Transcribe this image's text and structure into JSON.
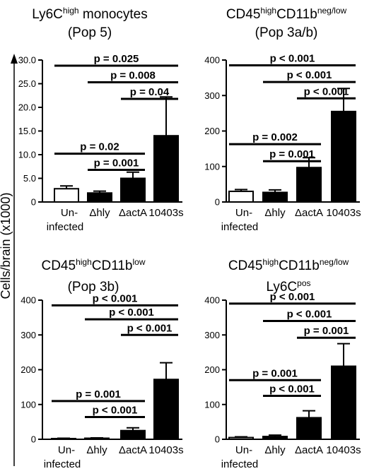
{
  "figure": {
    "ylabel": "Cells/brain (x1000)"
  },
  "chart_data": [
    {
      "type": "bar",
      "title_lines": [
        [
          {
            "t": "Ly6C"
          },
          {
            "t": "high",
            "sup": true
          },
          {
            "t": " monocytes"
          }
        ],
        [
          {
            "t": "(Pop 5)"
          }
        ]
      ],
      "categories": [
        "Un-\ninfected",
        "Δhly",
        "ΔactA",
        "10403s"
      ],
      "values": [
        2.8,
        1.9,
        5.0,
        14.0
      ],
      "errors": [
        0.6,
        0.4,
        1.3,
        8.2
      ],
      "fills": [
        "#ffffff",
        "#000000",
        "#000000",
        "#000000"
      ],
      "ylim": [
        0,
        30
      ],
      "yticks": [
        0,
        5,
        10,
        15,
        20,
        25,
        30
      ],
      "tick_labels": [
        "0",
        "5.0",
        "10.0",
        "15.0",
        "20.0",
        "25.0",
        "30.0"
      ],
      "comparisons": [
        {
          "from": 0,
          "to": 3,
          "label": "p = 0.025",
          "y": 28.8
        },
        {
          "from": 1,
          "to": 3,
          "label": "p = 0.008",
          "y": 25.3
        },
        {
          "from": 2,
          "to": 3,
          "label": "p = 0.04",
          "y": 21.8
        },
        {
          "from": 0,
          "to": 2,
          "label": "p = 0.02",
          "y": 10.2
        },
        {
          "from": 1,
          "to": 2,
          "label": "p = 0.001",
          "y": 6.8
        }
      ]
    },
    {
      "type": "bar",
      "title_lines": [
        [
          {
            "t": "CD45"
          },
          {
            "t": "high",
            "sup": true
          },
          {
            "t": "CD11b"
          },
          {
            "t": "neg/low",
            "sup": true
          }
        ],
        [
          {
            "t": "(Pop 3a/b)"
          }
        ]
      ],
      "categories": [
        "Un-\ninfected",
        "Δhly",
        "ΔactA",
        "10403s"
      ],
      "values": [
        30,
        27,
        97,
        255
      ],
      "errors": [
        5,
        7,
        28,
        65
      ],
      "fills": [
        "#ffffff",
        "#000000",
        "#000000",
        "#000000"
      ],
      "ylim": [
        0,
        400
      ],
      "yticks": [
        0,
        100,
        200,
        300,
        400
      ],
      "tick_labels": [
        "0",
        "100",
        "200",
        "300",
        "400"
      ],
      "comparisons": [
        {
          "from": 0,
          "to": 3,
          "label": "p < 0.001",
          "y": 385
        },
        {
          "from": 1,
          "to": 3,
          "label": "p < 0.001",
          "y": 338
        },
        {
          "from": 2,
          "to": 3,
          "label": "p < 0.001",
          "y": 292
        },
        {
          "from": 0,
          "to": 2,
          "label": "p = 0.002",
          "y": 163
        },
        {
          "from": 1,
          "to": 2,
          "label": "p = 0.001",
          "y": 115
        }
      ]
    },
    {
      "type": "bar",
      "title_lines": [
        [
          {
            "t": "CD45"
          },
          {
            "t": "high",
            "sup": true
          },
          {
            "t": "CD11b"
          },
          {
            "t": "low",
            "sup": true
          }
        ],
        [
          {
            "t": "(Pop 3b)"
          }
        ]
      ],
      "categories": [
        "Un-\ninfected",
        "Δhly",
        "ΔactA",
        "10403s"
      ],
      "values": [
        2,
        3,
        25,
        172
      ],
      "errors": [
        1,
        1,
        8,
        48
      ],
      "fills": [
        "#ffffff",
        "#000000",
        "#000000",
        "#000000"
      ],
      "ylim": [
        0,
        400
      ],
      "yticks": [
        0,
        100,
        200,
        300,
        400
      ],
      "tick_labels": [
        "0",
        "100",
        "200",
        "300",
        "400"
      ],
      "comparisons": [
        {
          "from": 0,
          "to": 3,
          "label": "p < 0.001",
          "y": 385
        },
        {
          "from": 1,
          "to": 3,
          "label": "p < 0.001",
          "y": 345
        },
        {
          "from": 2,
          "to": 3,
          "label": "p < 0.001",
          "y": 300
        },
        {
          "from": 0,
          "to": 2,
          "label": "p = 0.001",
          "y": 110
        },
        {
          "from": 1,
          "to": 2,
          "label": "p < 0.001",
          "y": 64
        }
      ]
    },
    {
      "type": "bar",
      "title_lines": [
        [
          {
            "t": "CD45"
          },
          {
            "t": "high",
            "sup": true
          },
          {
            "t": "CD11b"
          },
          {
            "t": "neg/low",
            "sup": true
          }
        ],
        [
          {
            "t": "Ly6C"
          },
          {
            "t": "pos",
            "sup": true
          }
        ]
      ],
      "categories": [
        "Un-\ninfected",
        "Δhly",
        "ΔactA",
        "10403s"
      ],
      "values": [
        5,
        8,
        62,
        210
      ],
      "errors": [
        2,
        4,
        20,
        65
      ],
      "fills": [
        "#ffffff",
        "#000000",
        "#000000",
        "#000000"
      ],
      "ylim": [
        0,
        400
      ],
      "yticks": [
        0,
        100,
        200,
        300,
        400
      ],
      "tick_labels": [
        "0",
        "100",
        "200",
        "300",
        "400"
      ],
      "comparisons": [
        {
          "from": 0,
          "to": 3,
          "label": "p < 0.001",
          "y": 390
        },
        {
          "from": 1,
          "to": 3,
          "label": "p < 0.001",
          "y": 340
        },
        {
          "from": 2,
          "to": 3,
          "label": "p = 0.001",
          "y": 292
        },
        {
          "from": 0,
          "to": 2,
          "label": "p = 0.001",
          "y": 170
        },
        {
          "from": 1,
          "to": 2,
          "label": "p < 0.001",
          "y": 125
        }
      ]
    }
  ]
}
